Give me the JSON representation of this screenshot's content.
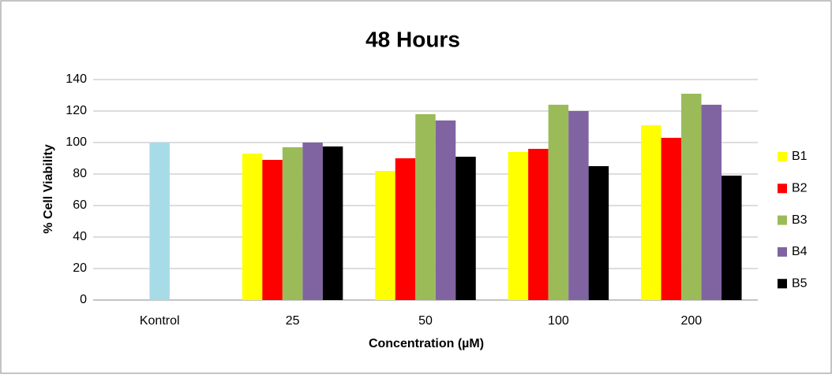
{
  "chart_data": {
    "type": "bar",
    "title": "48 Hours",
    "x_label": "Concentration (µM)",
    "y_label": "% Cell Viability",
    "categories": [
      "Kontrol",
      "25",
      "50",
      "100",
      "200"
    ],
    "series": [
      {
        "color": "#a8dbe8",
        "values": [
          100,
          null,
          null,
          null,
          null
        ]
      },
      {
        "name": "B1",
        "color": "#ffff00",
        "values": [
          null,
          93,
          82,
          94,
          111
        ]
      },
      {
        "name": "B2",
        "color": "#ff0000",
        "values": [
          null,
          89,
          90,
          96,
          103
        ]
      },
      {
        "name": "B3",
        "color": "#9bbb59",
        "values": [
          null,
          97,
          118,
          124,
          131
        ]
      },
      {
        "name": "B4",
        "color": "#8064a2",
        "values": [
          null,
          100,
          114,
          120,
          124
        ]
      },
      {
        "name": "B5",
        "color": "#000000",
        "values": [
          null,
          97.5,
          91,
          85,
          79
        ]
      }
    ],
    "ylim": [
      0,
      140
    ],
    "yticks": [
      0,
      20,
      40,
      60,
      80,
      100,
      120,
      140
    ],
    "grid": true,
    "legend": "right"
  }
}
